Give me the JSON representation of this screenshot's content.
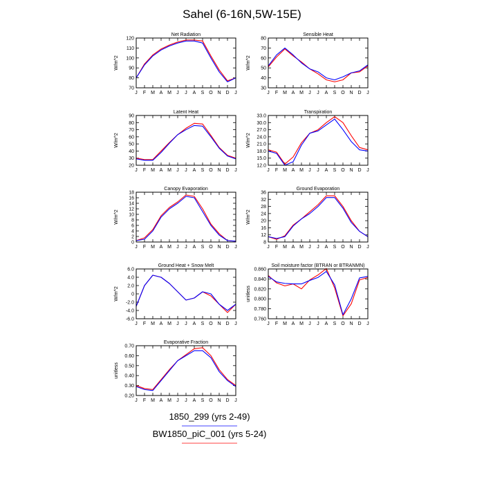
{
  "title": "Sahel (6-16N,5W-15E)",
  "months": [
    "J",
    "F",
    "M",
    "A",
    "M",
    "J",
    "J",
    "A",
    "S",
    "O",
    "N",
    "D",
    "J"
  ],
  "series_colors": {
    "1850_299 (yrs 2-49)": "#0000ff",
    "BW1850_piC_001 (yrs 5-24)": "#ff0000"
  },
  "legend": [
    {
      "name": "1850_299 (yrs 2-49)",
      "color": "#0000ff"
    },
    {
      "name": "BW1850_piC_001 (yrs 5-24)",
      "color": "#ff0000"
    }
  ],
  "chart_data": [
    {
      "type": "line",
      "title": "Net Radiation",
      "xlabel": "",
      "ylabel": "W/m^2",
      "ylim": [
        70,
        120
      ],
      "yticks": [
        70,
        80,
        90,
        100,
        110,
        120
      ],
      "ytick_labels": [
        "70",
        "80",
        "90",
        "100",
        "110",
        "120"
      ],
      "series": [
        {
          "name": "1850_299 (yrs 2-49)",
          "values": [
            80,
            93,
            102,
            108,
            112,
            115,
            117,
            117,
            115,
            100,
            86,
            76,
            80
          ]
        },
        {
          "name": "BW1850_piC_001 (yrs 5-24)",
          "values": [
            80,
            94,
            103,
            109,
            113,
            116,
            118,
            118,
            117,
            102,
            88,
            77,
            80
          ]
        }
      ]
    },
    {
      "type": "line",
      "title": "Sensible Heat",
      "xlabel": "",
      "ylabel": "W/m^2",
      "ylim": [
        30,
        80
      ],
      "yticks": [
        30,
        40,
        50,
        60,
        70,
        80
      ],
      "ytick_labels": [
        "30",
        "40",
        "50",
        "60",
        "70",
        "80"
      ],
      "series": [
        {
          "name": "1850_299 (yrs 2-49)",
          "values": [
            52,
            63,
            70,
            63,
            55,
            49,
            46,
            40,
            38,
            41,
            45,
            47,
            53
          ]
        },
        {
          "name": "BW1850_piC_001 (yrs 5-24)",
          "values": [
            51,
            61,
            69,
            62,
            56,
            49,
            44,
            38,
            36,
            38,
            45,
            46,
            52
          ]
        }
      ]
    },
    {
      "type": "line",
      "title": "Latent Heat",
      "xlabel": "",
      "ylabel": "W/m^2",
      "ylim": [
        20,
        90
      ],
      "yticks": [
        20,
        30,
        40,
        50,
        60,
        70,
        80,
        90
      ],
      "ytick_labels": [
        "20",
        "30",
        "40",
        "50",
        "60",
        "70",
        "80",
        "90"
      ],
      "series": [
        {
          "name": "1850_299 (yrs 2-49)",
          "values": [
            29,
            27,
            27,
            38,
            51,
            63,
            70,
            76,
            75,
            60,
            44,
            33,
            29
          ]
        },
        {
          "name": "BW1850_piC_001 (yrs 5-24)",
          "values": [
            30,
            28,
            28,
            40,
            52,
            63,
            72,
            79,
            78,
            62,
            45,
            34,
            30
          ]
        }
      ]
    },
    {
      "type": "line",
      "title": "Transpiration",
      "xlabel": "",
      "ylabel": "W/m^2",
      "ylim": [
        12,
        33
      ],
      "yticks": [
        12,
        15,
        18,
        21,
        24,
        27,
        30,
        33
      ],
      "ytick_labels": [
        "12.0",
        "15.0",
        "18.0",
        "21.0",
        "24.0",
        "27.0",
        "30.0",
        "33.0"
      ],
      "series": [
        {
          "name": "1850_299 (yrs 2-49)",
          "values": [
            18,
            17,
            12,
            13.5,
            20.5,
            25.5,
            26.5,
            29,
            31.5,
            27,
            22,
            18.5,
            18
          ]
        },
        {
          "name": "BW1850_piC_001 (yrs 5-24)",
          "values": [
            18.5,
            17.5,
            12.5,
            15.5,
            21.5,
            25.5,
            27,
            30,
            32.5,
            30,
            24.5,
            19.5,
            18.5
          ]
        }
      ]
    },
    {
      "type": "line",
      "title": "Canopy Evaporation",
      "xlabel": "",
      "ylabel": "W/m^2",
      "ylim": [
        0,
        18
      ],
      "yticks": [
        0,
        2,
        4,
        6,
        8,
        10,
        12,
        14,
        16,
        18
      ],
      "ytick_labels": [
        "0",
        "2",
        "4",
        "6",
        "8",
        "10",
        "12",
        "14",
        "16",
        "18"
      ],
      "series": [
        {
          "name": "1850_299 (yrs 2-49)",
          "values": [
            0.5,
            1,
            4,
            9,
            12,
            14,
            16.5,
            16,
            11,
            6,
            2.5,
            0.5,
            0.3
          ]
        },
        {
          "name": "BW1850_piC_001 (yrs 5-24)",
          "values": [
            0.5,
            1.5,
            4.5,
            9.5,
            12.5,
            14.5,
            17,
            16.5,
            12,
            6.5,
            3,
            0.5,
            0.3
          ]
        }
      ]
    },
    {
      "type": "line",
      "title": "Ground Evaporation",
      "xlabel": "",
      "ylabel": "W/m^2",
      "ylim": [
        8,
        36
      ],
      "yticks": [
        8,
        12,
        16,
        20,
        24,
        28,
        32,
        36
      ],
      "ytick_labels": [
        "8",
        "12",
        "16",
        "20",
        "24",
        "28",
        "32",
        "36"
      ],
      "series": [
        {
          "name": "1850_299 (yrs 2-49)",
          "values": [
            11,
            10,
            11,
            17,
            21,
            24,
            28,
            33,
            33,
            27,
            19,
            14,
            11
          ]
        },
        {
          "name": "BW1850_piC_001 (yrs 5-24)",
          "values": [
            11,
            9.5,
            11.5,
            17.5,
            21,
            25,
            29,
            34,
            34,
            28,
            20,
            14,
            11
          ]
        }
      ]
    },
    {
      "type": "line",
      "title": "Ground Heat + Snow Melt",
      "xlabel": "",
      "ylabel": "W/m^2",
      "ylim": [
        -6,
        6
      ],
      "yticks": [
        -6,
        -4,
        -2,
        0,
        2,
        4,
        6
      ],
      "ytick_labels": [
        "-6.0",
        "-4.0",
        "-2.0",
        "0",
        "2.0",
        "4.0",
        "6.0"
      ],
      "series": [
        {
          "name": "1850_299 (yrs 2-49)",
          "values": [
            -3,
            2,
            4.5,
            4,
            2.5,
            0.5,
            -1.5,
            -1,
            0.5,
            0,
            -2.5,
            -4,
            -2.5
          ]
        },
        {
          "name": "BW1850_piC_001 (yrs 5-24)",
          "values": [
            -3,
            2,
            4.5,
            4,
            2.5,
            0.5,
            -1.5,
            -1,
            0.5,
            -0.5,
            -2.5,
            -4.5,
            -2.5
          ]
        }
      ]
    },
    {
      "type": "line",
      "title": "Soil moisture factor (BTRAN or BTRANMN)",
      "xlabel": "",
      "ylabel": "unitless",
      "ylim": [
        0.76,
        0.86
      ],
      "yticks": [
        0.76,
        0.78,
        0.8,
        0.82,
        0.84,
        0.86
      ],
      "ytick_labels": [
        "0.760",
        "0.780",
        "0.800",
        "0.820",
        "0.840",
        "0.860"
      ],
      "series": [
        {
          "name": "1850_299 (yrs 2-49)",
          "values": [
            0.845,
            0.834,
            0.831,
            0.83,
            0.83,
            0.837,
            0.843,
            0.855,
            0.828,
            0.768,
            0.8,
            0.842,
            0.845
          ]
        },
        {
          "name": "BW1850_piC_001 (yrs 5-24)",
          "values": [
            0.847,
            0.832,
            0.826,
            0.83,
            0.82,
            0.838,
            0.848,
            0.861,
            0.822,
            0.766,
            0.79,
            0.838,
            0.843
          ]
        }
      ]
    },
    {
      "type": "line",
      "title": "Evaporative Fraction",
      "xlabel": "",
      "ylabel": "unitless",
      "ylim": [
        0.2,
        0.7
      ],
      "yticks": [
        0.2,
        0.3,
        0.4,
        0.5,
        0.6,
        0.7
      ],
      "ytick_labels": [
        "0.20",
        "0.30",
        "0.40",
        "0.50",
        "0.60",
        "0.70"
      ],
      "series": [
        {
          "name": "1850_299 (yrs 2-49)",
          "values": [
            0.29,
            0.26,
            0.25,
            0.35,
            0.45,
            0.55,
            0.6,
            0.65,
            0.65,
            0.58,
            0.44,
            0.35,
            0.29
          ]
        },
        {
          "name": "BW1850_piC_001 (yrs 5-24)",
          "values": [
            0.3,
            0.27,
            0.26,
            0.36,
            0.46,
            0.55,
            0.61,
            0.67,
            0.68,
            0.6,
            0.46,
            0.36,
            0.3
          ]
        }
      ]
    }
  ]
}
